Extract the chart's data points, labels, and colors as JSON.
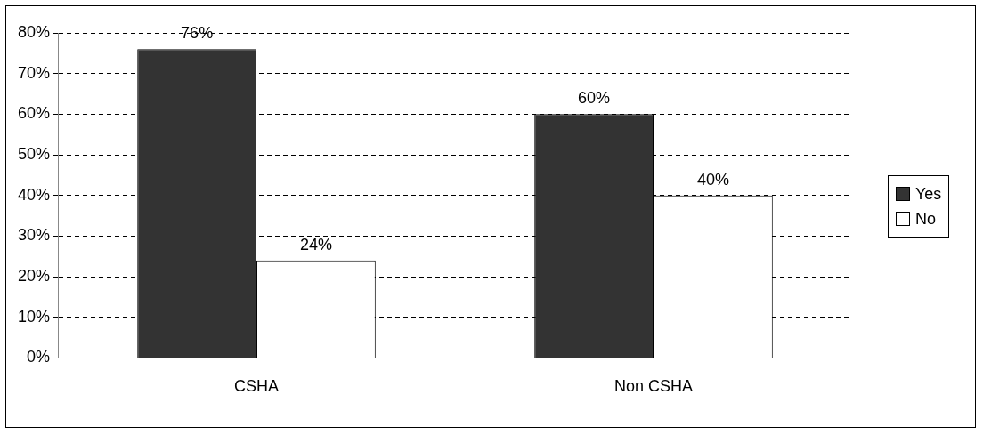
{
  "chart_data": {
    "type": "bar",
    "categories": [
      "CSHA",
      "Non CSHA"
    ],
    "series": [
      {
        "name": "Yes",
        "color": "#333333",
        "values": [
          76,
          60
        ],
        "value_labels": [
          "76%",
          "60%"
        ]
      },
      {
        "name": "No",
        "color": "#ffffff",
        "values": [
          24,
          40
        ],
        "value_labels": [
          "24%",
          "40%"
        ]
      }
    ],
    "ylim": [
      0,
      80
    ],
    "yticks": [
      {
        "value": 0,
        "label": "0%"
      },
      {
        "value": 10,
        "label": "10%"
      },
      {
        "value": 20,
        "label": "20%"
      },
      {
        "value": 30,
        "label": "30%"
      },
      {
        "value": 40,
        "label": "40%"
      },
      {
        "value": 50,
        "label": "50%"
      },
      {
        "value": 60,
        "label": "60%"
      },
      {
        "value": 70,
        "label": "70%"
      },
      {
        "value": 80,
        "label": "80%"
      }
    ],
    "grid": "y",
    "line_style": "dashed",
    "legend": "right"
  }
}
